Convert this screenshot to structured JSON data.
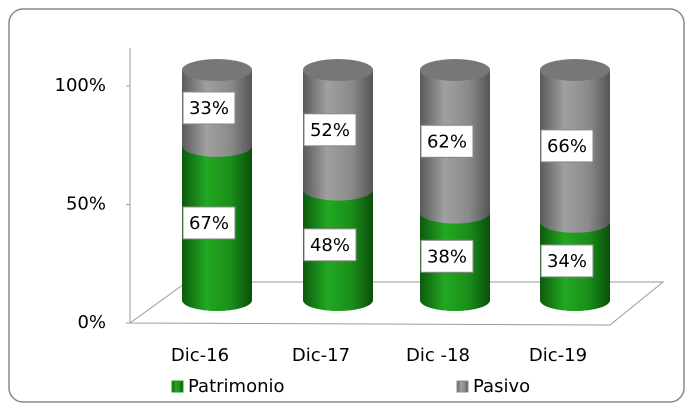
{
  "chart_data": {
    "type": "bar3d_stacked",
    "categories": [
      "Dic-16",
      "Dic-17",
      "Dic -18",
      "Dic-19"
    ],
    "series": [
      {
        "name": "Patrimonio",
        "color": "#1f9a1f",
        "values": [
          67,
          48,
          38,
          34
        ],
        "value_labels": [
          "67%",
          "48%",
          "38%",
          "34%"
        ]
      },
      {
        "name": "Pasivo",
        "color": "#8c8c8c",
        "values": [
          33,
          52,
          62,
          66
        ],
        "value_labels": [
          "33%",
          "52%",
          "62%",
          "66%"
        ]
      }
    ],
    "ylim": [
      0,
      100
    ],
    "yticks": [
      {
        "value": 0,
        "label": "0%"
      },
      {
        "value": 50,
        "label": "50%"
      },
      {
        "value": 100,
        "label": "100%"
      }
    ],
    "legend": "bottom"
  }
}
